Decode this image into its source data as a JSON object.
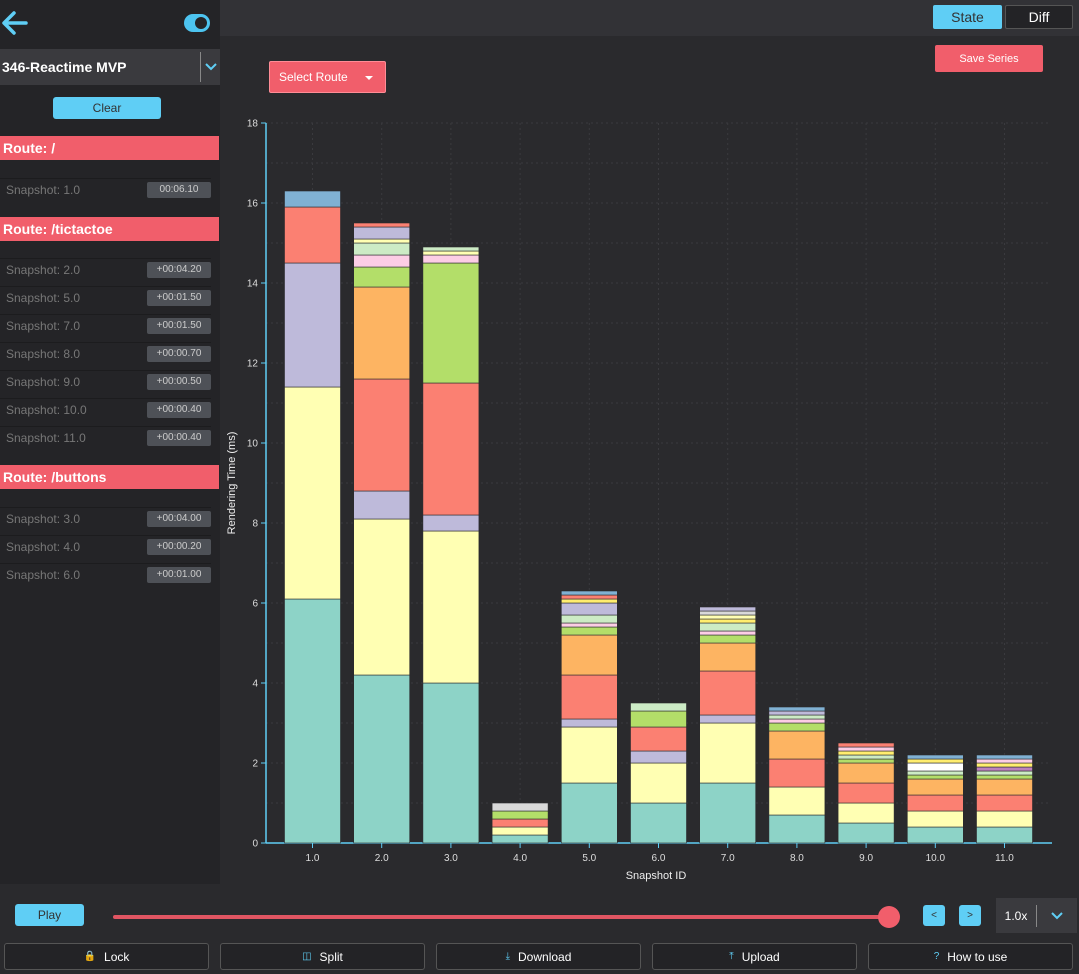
{
  "sidebar": {
    "series_name": "346-Reactime MVP",
    "clear_label": "Clear",
    "routes": [
      {
        "title": "Route: /",
        "snapshots": [
          {
            "label": "Snapshot: 1.0",
            "time": "00:06.10"
          }
        ]
      },
      {
        "title": "Route: /tictactoe",
        "snapshots": [
          {
            "label": "Snapshot: 2.0",
            "time": "+00:04.20"
          },
          {
            "label": "Snapshot: 5.0",
            "time": "+00:01.50"
          },
          {
            "label": "Snapshot: 7.0",
            "time": "+00:01.50"
          },
          {
            "label": "Snapshot: 8.0",
            "time": "+00:00.70"
          },
          {
            "label": "Snapshot: 9.0",
            "time": "+00:00.50"
          },
          {
            "label": "Snapshot: 10.0",
            "time": "+00:00.40"
          },
          {
            "label": "Snapshot: 11.0",
            "time": "+00:00.40"
          }
        ]
      },
      {
        "title": "Route: /buttons",
        "snapshots": [
          {
            "label": "Snapshot: 3.0",
            "time": "+00:04.00"
          },
          {
            "label": "Snapshot: 4.0",
            "time": "+00:00.20"
          },
          {
            "label": "Snapshot: 6.0",
            "time": "+00:01.00"
          }
        ]
      }
    ]
  },
  "topbar": {
    "state_label": "State",
    "diff_label": "Diff"
  },
  "main": {
    "select_route_label": "Select Route",
    "save_series_label": "Save Series"
  },
  "controls": {
    "play_label": "Play",
    "prev_label": "<",
    "next_label": ">",
    "speed": "1.0x",
    "slider_position": 1.0,
    "buttons": [
      {
        "icon": "lock-icon",
        "glyph": "🔒",
        "label": "Lock"
      },
      {
        "icon": "split-icon",
        "glyph": "◫",
        "label": "Split"
      },
      {
        "icon": "download-icon",
        "glyph": "⤓",
        "label": "Download"
      },
      {
        "icon": "upload-icon",
        "glyph": "⤒",
        "label": "Upload"
      },
      {
        "icon": "help-icon",
        "glyph": "?",
        "label": "How to use"
      }
    ]
  },
  "colors": {
    "accent": "#5fcef5",
    "route": "#f15e6b",
    "segments": [
      "#8dd3c7",
      "#ffffb3",
      "#bebada",
      "#fb8072",
      "#fdb462",
      "#b3de69",
      "#fccde5",
      "#d9d9d9",
      "#ccebc5",
      "#ffed6f",
      "#80b1d3",
      "#bc80bd"
    ]
  },
  "chart_data": {
    "type": "bar",
    "stacked": true,
    "xlabel": "Snapshot ID",
    "ylabel": "Rendering Time (ms)",
    "ylim": [
      0,
      18
    ],
    "yticks": [
      0,
      2,
      4,
      6,
      8,
      10,
      12,
      14,
      16,
      18
    ],
    "grid": true,
    "categories": [
      "1.0",
      "2.0",
      "3.0",
      "4.0",
      "5.0",
      "6.0",
      "7.0",
      "8.0",
      "9.0",
      "10.0",
      "11.0"
    ],
    "stacks": [
      [
        [
          6.1,
          "#8dd3c7"
        ],
        [
          5.3,
          "#ffffb3"
        ],
        [
          3.1,
          "#bebada"
        ],
        [
          1.4,
          "#fb8072"
        ],
        [
          0.4,
          "#80b1d3"
        ]
      ],
      [
        [
          4.2,
          "#8dd3c7"
        ],
        [
          3.9,
          "#ffffb3"
        ],
        [
          0.7,
          "#bebada"
        ],
        [
          2.8,
          "#fb8072"
        ],
        [
          2.3,
          "#fdb462"
        ],
        [
          0.5,
          "#b3de69"
        ],
        [
          0.3,
          "#fccde5"
        ],
        [
          0.3,
          "#ccebc5"
        ],
        [
          0.1,
          "#ffffb3"
        ],
        [
          0.3,
          "#bebada"
        ],
        [
          0.1,
          "#fb8072"
        ]
      ],
      [
        [
          4.0,
          "#8dd3c7"
        ],
        [
          3.8,
          "#ffffb3"
        ],
        [
          0.4,
          "#bebada"
        ],
        [
          3.3,
          "#fb8072"
        ],
        [
          3.0,
          "#b3de69"
        ],
        [
          0.2,
          "#fccde5"
        ],
        [
          0.1,
          "#ffffb3"
        ],
        [
          0.1,
          "#ccebc5"
        ]
      ],
      [
        [
          0.2,
          "#8dd3c7"
        ],
        [
          0.2,
          "#ffffb3"
        ],
        [
          0.2,
          "#fb8072"
        ],
        [
          0.2,
          "#b3de69"
        ],
        [
          0.2,
          "#d9d9d9"
        ]
      ],
      [
        [
          1.5,
          "#8dd3c7"
        ],
        [
          1.4,
          "#ffffb3"
        ],
        [
          0.2,
          "#bebada"
        ],
        [
          1.1,
          "#fb8072"
        ],
        [
          1.0,
          "#fdb462"
        ],
        [
          0.2,
          "#b3de69"
        ],
        [
          0.1,
          "#fccde5"
        ],
        [
          0.2,
          "#ccebc5"
        ],
        [
          0.3,
          "#bebada"
        ],
        [
          0.1,
          "#ffed6f"
        ],
        [
          0.1,
          "#fb8072"
        ],
        [
          0.1,
          "#80b1d3"
        ]
      ],
      [
        [
          1.0,
          "#8dd3c7"
        ],
        [
          1.0,
          "#ffffb3"
        ],
        [
          0.3,
          "#bebada"
        ],
        [
          0.6,
          "#fb8072"
        ],
        [
          0.4,
          "#b3de69"
        ],
        [
          0.2,
          "#ccebc5"
        ]
      ],
      [
        [
          1.5,
          "#8dd3c7"
        ],
        [
          1.5,
          "#ffffb3"
        ],
        [
          0.2,
          "#bebada"
        ],
        [
          1.1,
          "#fb8072"
        ],
        [
          0.7,
          "#fdb462"
        ],
        [
          0.2,
          "#b3de69"
        ],
        [
          0.1,
          "#fccde5"
        ],
        [
          0.2,
          "#ccebc5"
        ],
        [
          0.1,
          "#ffed6f"
        ],
        [
          0.1,
          "#ffffb3"
        ],
        [
          0.1,
          "#d9d9d9"
        ],
        [
          0.1,
          "#bebada"
        ]
      ],
      [
        [
          0.7,
          "#8dd3c7"
        ],
        [
          0.7,
          "#ffffb3"
        ],
        [
          0.7,
          "#fb8072"
        ],
        [
          0.7,
          "#fdb462"
        ],
        [
          0.2,
          "#b3de69"
        ],
        [
          0.1,
          "#fccde5"
        ],
        [
          0.1,
          "#ccebc5"
        ],
        [
          0.1,
          "#bebada"
        ],
        [
          0.1,
          "#80b1d3"
        ]
      ],
      [
        [
          0.5,
          "#8dd3c7"
        ],
        [
          0.5,
          "#ffffb3"
        ],
        [
          0.5,
          "#fb8072"
        ],
        [
          0.5,
          "#fdb462"
        ],
        [
          0.1,
          "#b3de69"
        ],
        [
          0.1,
          "#ccebc5"
        ],
        [
          0.1,
          "#ffed6f"
        ],
        [
          0.1,
          "#fccde5"
        ],
        [
          0.1,
          "#fb8072"
        ]
      ],
      [
        [
          0.4,
          "#8dd3c7"
        ],
        [
          0.4,
          "#ffffb3"
        ],
        [
          0.4,
          "#fb8072"
        ],
        [
          0.4,
          "#fdb462"
        ],
        [
          0.1,
          "#b3de69"
        ],
        [
          0.1,
          "#ccebc5"
        ],
        [
          0.2,
          "#ffffff"
        ],
        [
          0.1,
          "#ffed6f"
        ],
        [
          0.1,
          "#80b1d3"
        ]
      ],
      [
        [
          0.4,
          "#8dd3c7"
        ],
        [
          0.4,
          "#ffffb3"
        ],
        [
          0.4,
          "#fb8072"
        ],
        [
          0.4,
          "#fdb462"
        ],
        [
          0.1,
          "#b3de69"
        ],
        [
          0.1,
          "#ccebc5"
        ],
        [
          0.1,
          "#bc80bd"
        ],
        [
          0.1,
          "#ffed6f"
        ],
        [
          0.1,
          "#fccde5"
        ],
        [
          0.1,
          "#80b1d3"
        ]
      ]
    ]
  }
}
